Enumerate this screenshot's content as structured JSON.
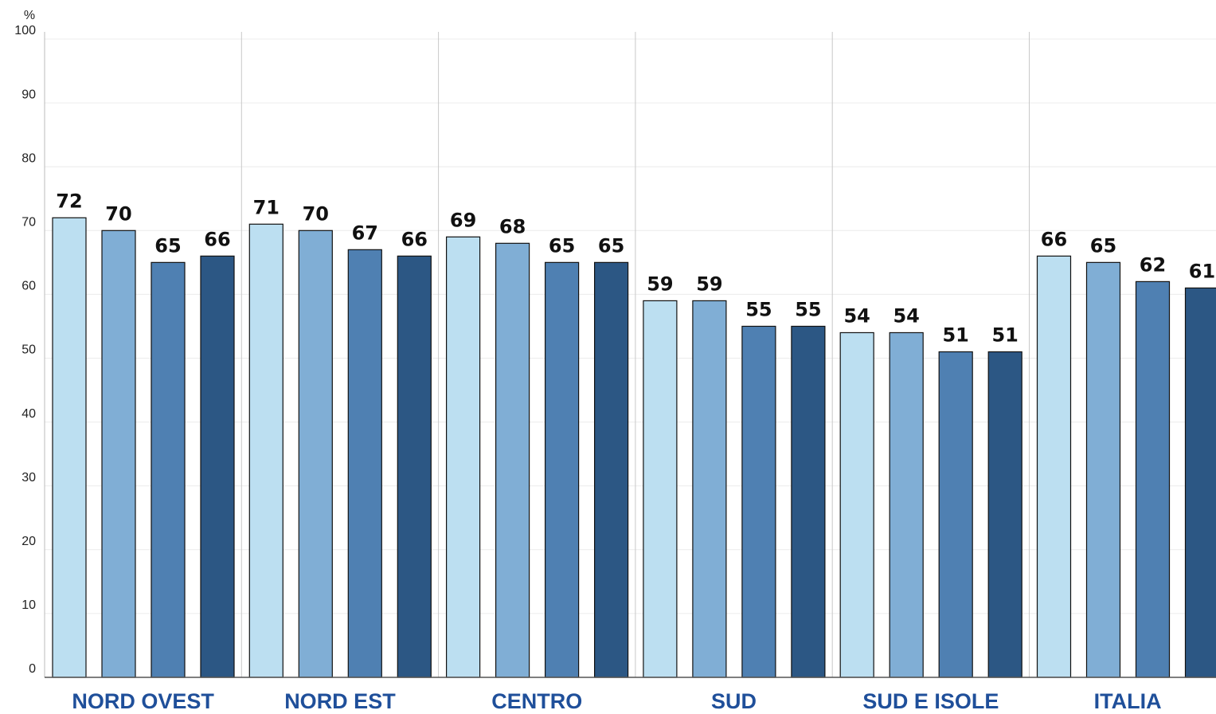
{
  "chart_data": {
    "type": "bar",
    "y_label": "%",
    "categories": [
      "NORD OVEST",
      "NORD EST",
      "CENTRO",
      "SUD",
      "SUD E ISOLE",
      "ITALIA"
    ],
    "series": [
      {
        "color": "#bcdff1",
        "values": [
          72,
          71,
          69,
          59,
          54,
          66
        ]
      },
      {
        "color": "#80aed5",
        "values": [
          70,
          70,
          68,
          59,
          54,
          65
        ]
      },
      {
        "color": "#4f80b2",
        "values": [
          65,
          67,
          65,
          55,
          51,
          62
        ]
      },
      {
        "color": "#2c5784",
        "values": [
          66,
          66,
          65,
          55,
          51,
          61
        ]
      }
    ],
    "ylim": [
      0,
      100
    ],
    "yticks": [
      0,
      10,
      20,
      30,
      40,
      50,
      60,
      70,
      80,
      90,
      100
    ],
    "grid": true
  }
}
